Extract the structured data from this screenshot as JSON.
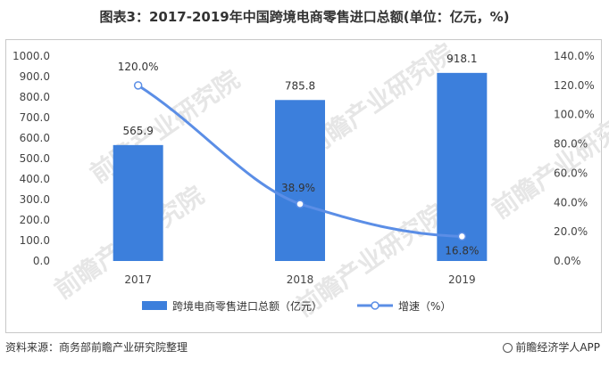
{
  "title": "图表3：2017-2019年中国跨境电商零售进口总额(单位：亿元，%)",
  "source": "资料来源：商务部前瞻产业研究院整理",
  "brand": "前瞻经济学人APP",
  "watermark": "前瞻产业研究院",
  "colors": {
    "bar": "#3c7fdc",
    "line": "#5b8ee6"
  },
  "chart_data": {
    "type": "bar",
    "categories": [
      "2017",
      "2018",
      "2019"
    ],
    "series": [
      {
        "name": "跨境电商零售进口总额（亿元）",
        "type": "bar",
        "axis": "left",
        "values": [
          565.9,
          785.8,
          918.1
        ],
        "labels": [
          "565.9",
          "785.8",
          "918.1"
        ]
      },
      {
        "name": "增速（%）",
        "type": "line",
        "axis": "right",
        "values": [
          120.0,
          38.9,
          16.8
        ],
        "labels": [
          "120.0%",
          "38.9%",
          "16.8%"
        ]
      }
    ],
    "y_left": {
      "min": 0,
      "max": 1000,
      "ticks": [
        "0.0",
        "100.0",
        "200.0",
        "300.0",
        "400.0",
        "500.0",
        "600.0",
        "700.0",
        "800.0",
        "900.0",
        "1000.0"
      ]
    },
    "y_right": {
      "min": 0,
      "max": 140,
      "ticks": [
        "0.0%",
        "20.0%",
        "40.0%",
        "60.0%",
        "80.0%",
        "100.0%",
        "120.0%",
        "140.0%"
      ]
    },
    "legend_position": "bottom",
    "grid": false
  }
}
